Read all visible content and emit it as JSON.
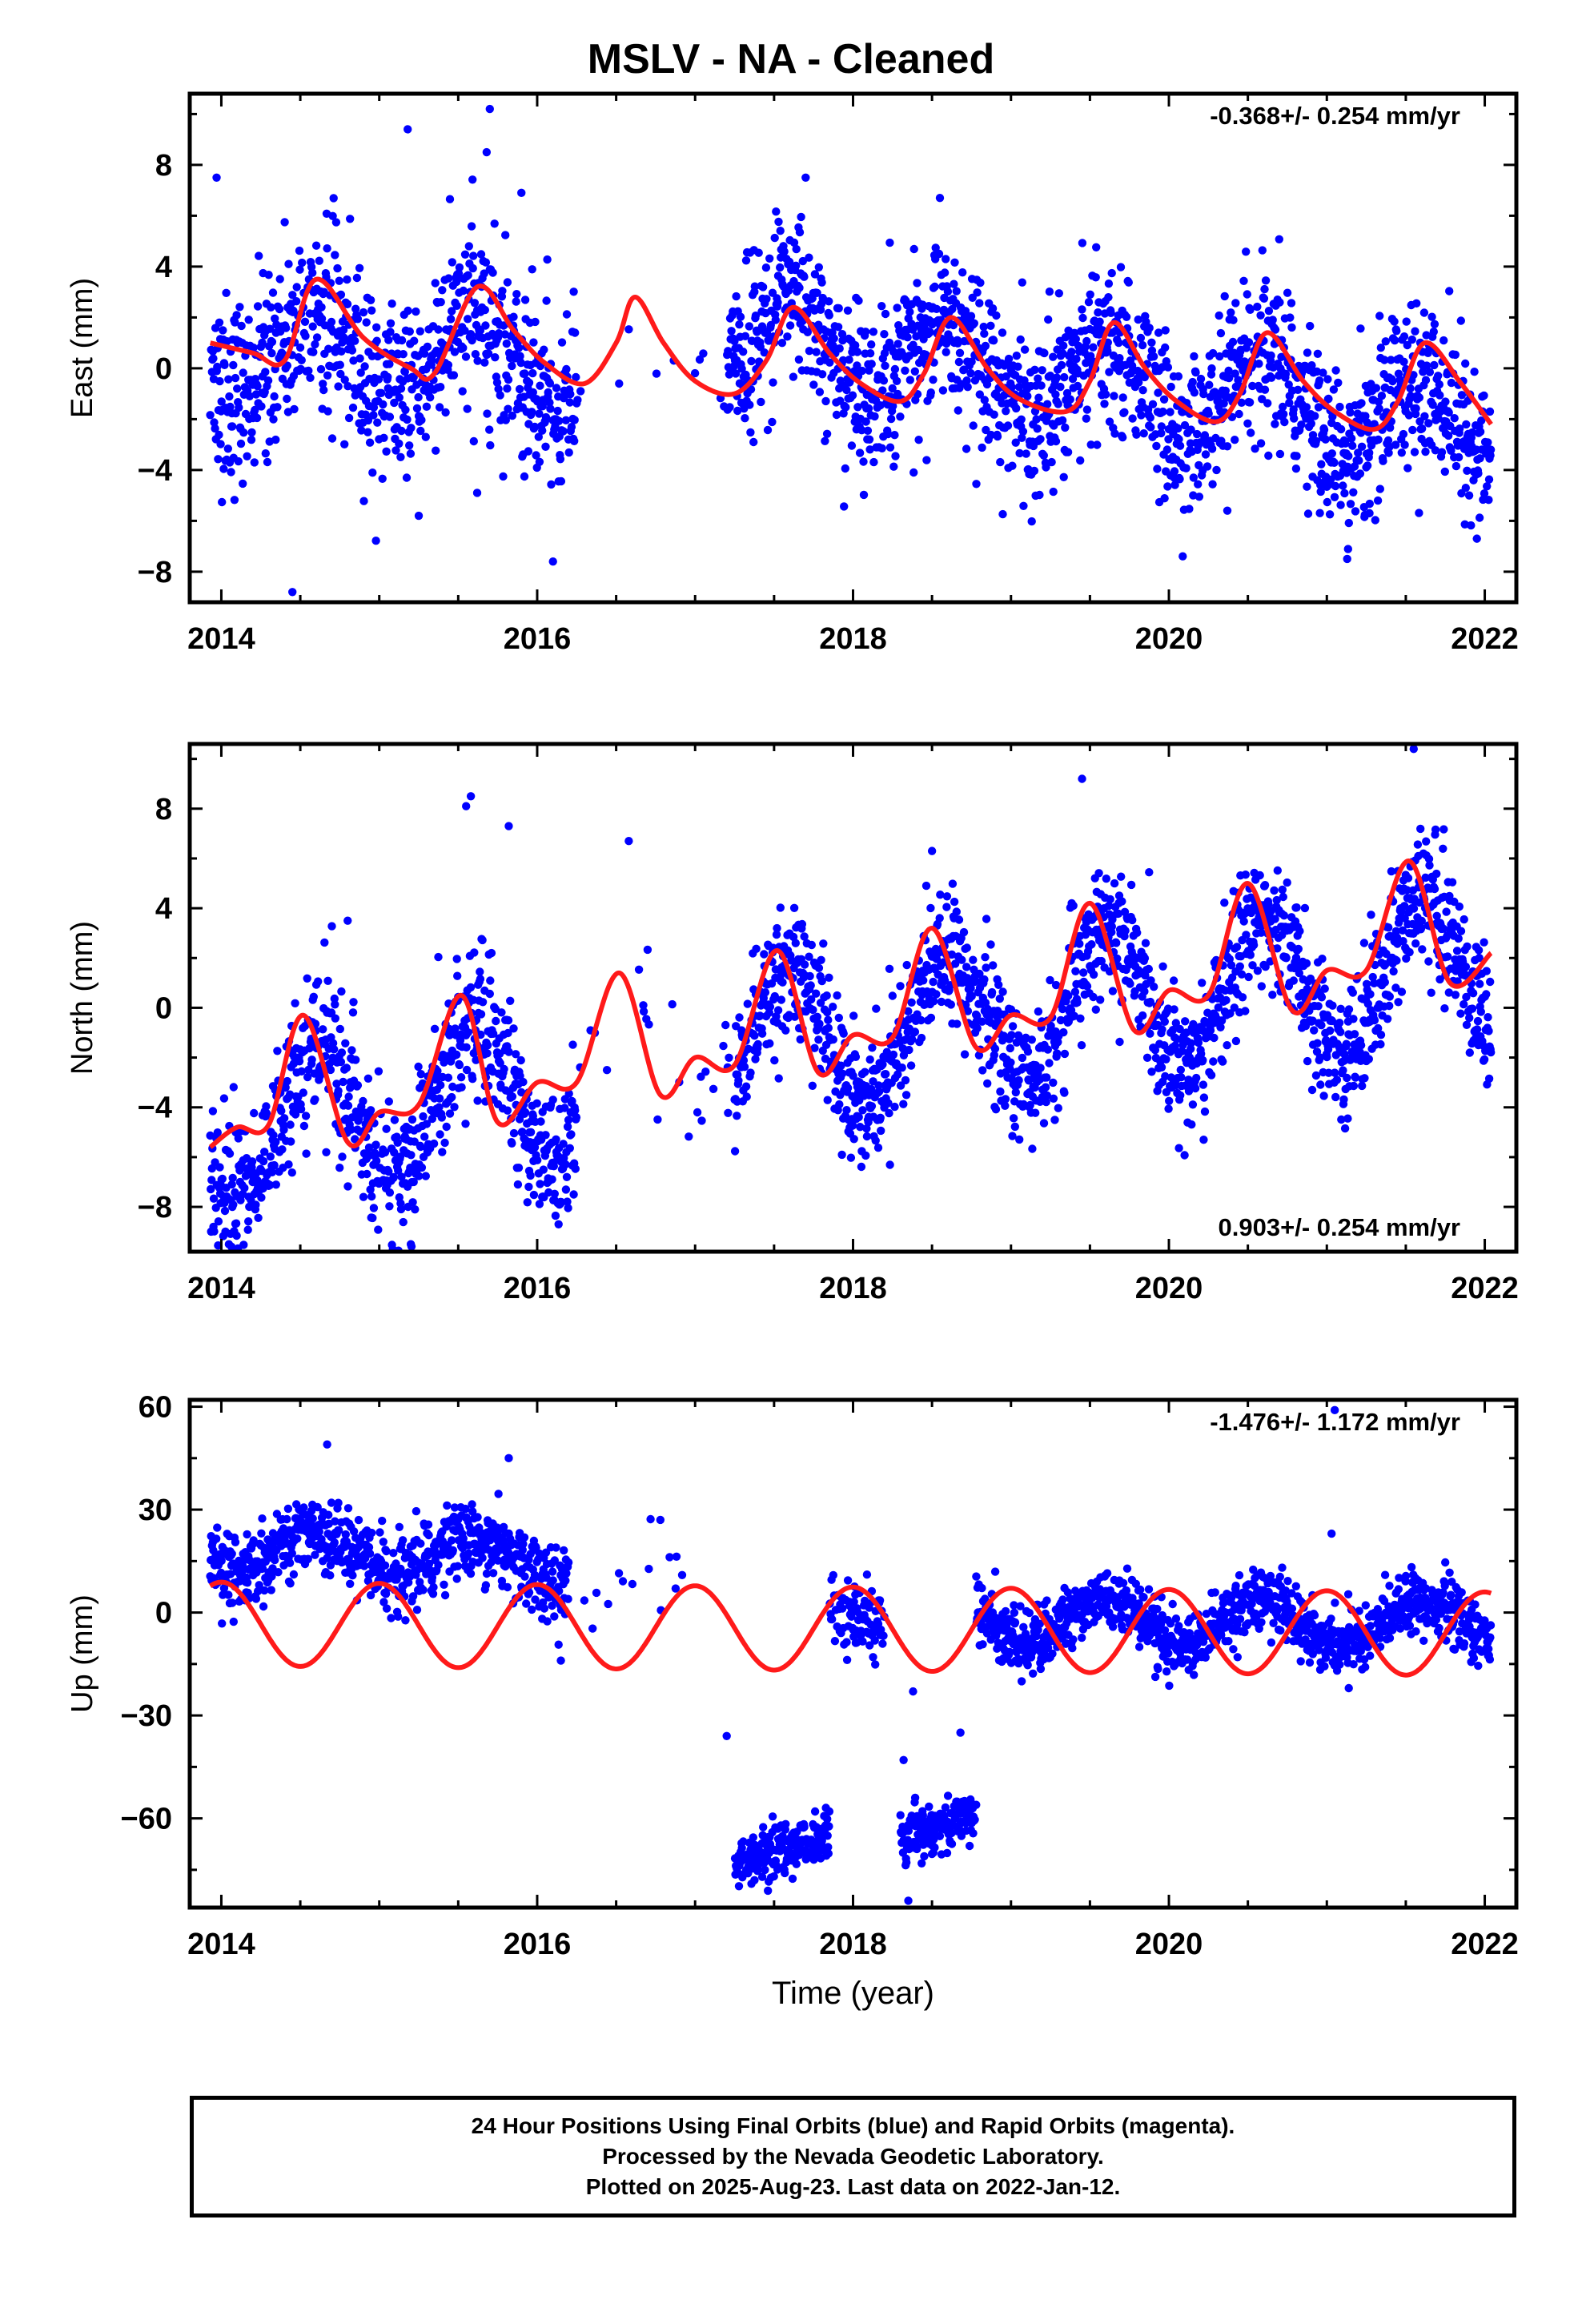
{
  "title": "MSLV  - NA - Cleaned",
  "colors": {
    "points": "#0000ff",
    "fit": "#ff1a1a",
    "frame": "#000000"
  },
  "footer": {
    "line1": "24 Hour Positions Using Final Orbits (blue) and Rapid Orbits (magenta).",
    "line2": "Processed by the Nevada Geodetic Laboratory.",
    "line3": "Plotted on 2025-Aug-23. Last data on 2022-Jan-12."
  },
  "chart_data": [
    {
      "type": "scatter",
      "ylabel": "East (mm)",
      "xlabel": "",
      "xlim": [
        2013.8,
        2022.2
      ],
      "ylim": [
        -9.2,
        10.8
      ],
      "xticks": [
        2014,
        2016,
        2018,
        2020,
        2022
      ],
      "yticks": [
        -8,
        -4,
        0,
        4,
        8
      ],
      "rate_label": "-0.368+/- 0.254 mm/yr",
      "rate_position": "top-right",
      "series": [
        {
          "kind": "points",
          "color": "#0000ff",
          "segments": [
            {
              "x": [
                2013.93,
                2016.25
              ],
              "y": [
                0.8,
                0.1
              ],
              "amp": 1.6,
              "noise": 1.8,
              "density": 0.88
            },
            {
              "x": [
                2016.25,
                2016.55
              ],
              "y": [
                -1.2,
                -1.0
              ],
              "amp": 0.5,
              "noise": 1.2,
              "density": 0.05
            },
            {
              "x": [
                2016.55,
                2017.2
              ],
              "y": [
                0.6,
                -0.4
              ],
              "amp": 0.5,
              "noise": 1.2,
              "density": 0.04
            },
            {
              "x": [
                2017.2,
                2022.04
              ],
              "y": [
                1.2,
                -2.3
              ],
              "amp": 1.7,
              "noise": 1.6,
              "density": 0.92
            }
          ],
          "outliers": [
            {
              "x": 2013.97,
              "y": 7.5
            },
            {
              "x": 2014.45,
              "y": -8.8
            },
            {
              "x": 2015.18,
              "y": 9.4
            },
            {
              "x": 2015.7,
              "y": 10.2
            },
            {
              "x": 2015.68,
              "y": 8.5
            },
            {
              "x": 2015.9,
              "y": 6.9
            },
            {
              "x": 2016.1,
              "y": -7.6
            },
            {
              "x": 2015.25,
              "y": -5.8
            },
            {
              "x": 2015.62,
              "y": -4.9
            },
            {
              "x": 2017.7,
              "y": 7.5
            },
            {
              "x": 2018.55,
              "y": 6.7
            },
            {
              "x": 2021.95,
              "y": -6.7
            },
            {
              "x": 2020.37,
              "y": -5.6
            },
            {
              "x": 2021.27,
              "y": -5.7
            }
          ]
        },
        {
          "kind": "fit",
          "color": "#ff1a1a",
          "x": [
            2013.93,
            2014.2,
            2014.4,
            2014.6,
            2014.9,
            2015.2,
            2015.35,
            2015.62,
            2015.85,
            2016.05,
            2016.3,
            2016.5,
            2016.62,
            2016.8,
            2017.0,
            2017.25,
            2017.45,
            2017.62,
            2017.85,
            2018.05,
            2018.3,
            2018.45,
            2018.62,
            2018.85,
            2019.05,
            2019.35,
            2019.5,
            2019.65,
            2019.85,
            2020.05,
            2020.3,
            2020.45,
            2020.62,
            2020.85,
            2021.05,
            2021.3,
            2021.45,
            2021.62,
            2021.85,
            2022.04
          ],
          "y": [
            1.0,
            0.6,
            0.3,
            3.5,
            1.2,
            0.0,
            -0.2,
            3.2,
            1.5,
            0.2,
            -0.6,
            1.0,
            2.8,
            1.0,
            -0.5,
            -1.0,
            0.3,
            2.4,
            0.6,
            -0.6,
            -1.3,
            -0.2,
            2.0,
            0.0,
            -1.2,
            -1.7,
            -0.5,
            1.8,
            0.0,
            -1.3,
            -2.1,
            -1.0,
            1.4,
            -0.5,
            -1.7,
            -2.4,
            -1.3,
            1.0,
            -0.6,
            -2.2
          ]
        }
      ]
    },
    {
      "type": "scatter",
      "ylabel": "North (mm)",
      "xlabel": "",
      "xlim": [
        2013.8,
        2022.2
      ],
      "ylim": [
        -9.8,
        10.6
      ],
      "xticks": [
        2014,
        2016,
        2018,
        2020,
        2022
      ],
      "yticks": [
        -8,
        -4,
        0,
        4,
        8
      ],
      "rate_label": "0.903+/- 0.254 mm/yr",
      "rate_position": "bottom-right",
      "series": [
        {
          "kind": "points",
          "color": "#0000ff",
          "segments": [
            {
              "x": [
                2013.93,
                2016.25
              ],
              "y": [
                -5.0,
                -3.0
              ],
              "amp": 2.8,
              "noise": 1.5,
              "density": 0.88
            },
            {
              "x": [
                2016.25,
                2017.25
              ],
              "y": [
                -1.5,
                -1.8
              ],
              "amp": 1.0,
              "noise": 1.3,
              "density": 0.05
            },
            {
              "x": [
                2017.25,
                2022.04
              ],
              "y": [
                -1.5,
                1.8
              ],
              "amp": 2.8,
              "noise": 1.3,
              "density": 0.92
            }
          ],
          "outliers": [
            {
              "x": 2015.58,
              "y": 8.5
            },
            {
              "x": 2015.55,
              "y": 8.1
            },
            {
              "x": 2015.82,
              "y": 7.3
            },
            {
              "x": 2016.58,
              "y": 6.7
            },
            {
              "x": 2014.8,
              "y": 3.5
            },
            {
              "x": 2015.2,
              "y": -9.5
            },
            {
              "x": 2013.95,
              "y": -8.8
            },
            {
              "x": 2018.5,
              "y": 6.3
            },
            {
              "x": 2021.55,
              "y": 10.4
            },
            {
              "x": 2019.45,
              "y": 9.2
            },
            {
              "x": 2020.22,
              "y": -5.3
            }
          ]
        },
        {
          "kind": "fit",
          "color": "#ff1a1a",
          "x": [
            2013.93,
            2014.1,
            2014.3,
            2014.52,
            2014.8,
            2015.0,
            2015.25,
            2015.52,
            2015.75,
            2016.0,
            2016.25,
            2016.52,
            2016.78,
            2017.0,
            2017.25,
            2017.52,
            2017.78,
            2018.0,
            2018.25,
            2018.5,
            2018.78,
            2019.0,
            2019.25,
            2019.5,
            2019.78,
            2020.0,
            2020.25,
            2020.5,
            2020.78,
            2021.0,
            2021.25,
            2021.52,
            2021.78,
            2022.04
          ],
          "y": [
            -5.6,
            -4.8,
            -4.7,
            -0.3,
            -5.4,
            -4.2,
            -3.9,
            0.5,
            -4.6,
            -3.0,
            -3.0,
            1.4,
            -3.5,
            -2.0,
            -2.3,
            2.3,
            -2.6,
            -1.1,
            -1.2,
            3.2,
            -1.6,
            -0.3,
            -0.4,
            4.2,
            -0.9,
            0.7,
            0.5,
            5.0,
            -0.1,
            1.5,
            1.5,
            5.9,
            1.0,
            2.2
          ]
        }
      ]
    },
    {
      "type": "scatter",
      "ylabel": "Up (mm)",
      "xlabel": "Time (year)",
      "xlim": [
        2013.8,
        2022.2
      ],
      "ylim": [
        -86,
        62
      ],
      "xticks": [
        2014,
        2016,
        2018,
        2020,
        2022
      ],
      "yticks": [
        -60,
        -30,
        0,
        30,
        60
      ],
      "rate_label": "-1.476+/- 1.172 mm/yr",
      "rate_position": "top-right",
      "series": [
        {
          "kind": "points",
          "color": "#0000ff",
          "segments": [
            {
              "x": [
                2013.93,
                2016.2
              ],
              "y": [
                18,
                15
              ],
              "amp": 6,
              "noise": 5.5,
              "density": 0.9
            },
            {
              "x": [
                2016.2,
                2016.95
              ],
              "y": [
                6,
                8
              ],
              "amp": 3,
              "noise": 7,
              "density": 0.06
            },
            {
              "x": [
                2017.25,
                2017.85
              ],
              "y": [
                -74,
                -64
              ],
              "amp": 0,
              "noise": 4,
              "density": 0.92
            },
            {
              "x": [
                2017.85,
                2018.2
              ],
              "y": [
                2,
                -6
              ],
              "amp": 0,
              "noise": 5,
              "density": 0.7
            },
            {
              "x": [
                2018.3,
                2018.78
              ],
              "y": [
                -67,
                -58
              ],
              "amp": 0,
              "noise": 4,
              "density": 0.9
            },
            {
              "x": [
                2018.78,
                2022.04
              ],
              "y": [
                -2,
                -3
              ],
              "amp": 7,
              "noise": 4.5,
              "density": 0.92
            }
          ],
          "outliers": [
            {
              "x": 2014.67,
              "y": 49
            },
            {
              "x": 2015.82,
              "y": 45
            },
            {
              "x": 2016.78,
              "y": 27
            },
            {
              "x": 2017.2,
              "y": -36
            },
            {
              "x": 2018.32,
              "y": -43
            },
            {
              "x": 2018.68,
              "y": -35
            },
            {
              "x": 2018.35,
              "y": -84
            },
            {
              "x": 2021.03,
              "y": 23
            },
            {
              "x": 2021.05,
              "y": 59
            },
            {
              "x": 2018.38,
              "y": -23
            },
            {
              "x": 2016.15,
              "y": -14
            }
          ]
        },
        {
          "kind": "fit",
          "color": "#ff1a1a",
          "x_start": 2013.93,
          "x_end": 2022.04,
          "offset": -3.3,
          "trend_per_year": -0.36,
          "amplitude": 12.2,
          "peak_year_fraction": 0.0
        }
      ]
    }
  ]
}
